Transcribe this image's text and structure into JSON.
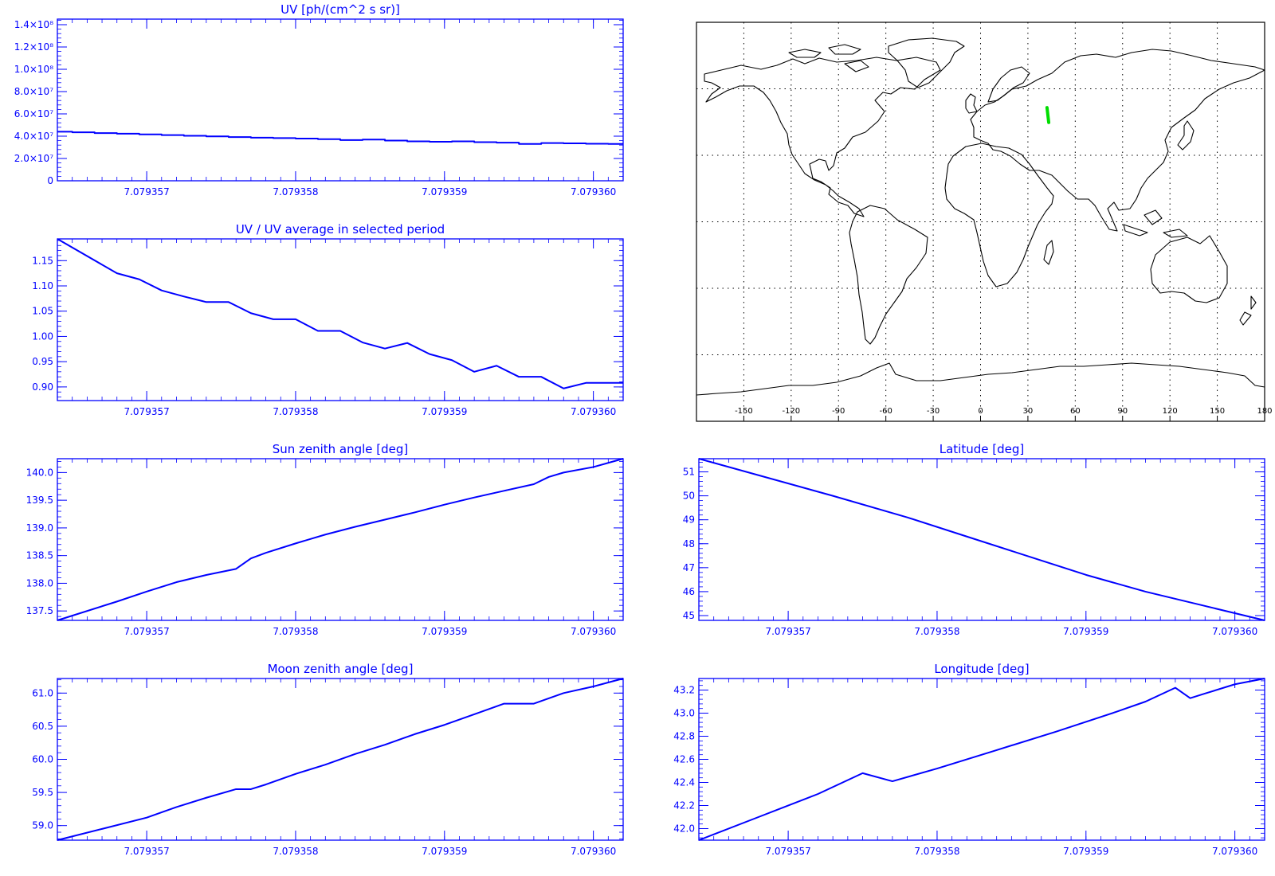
{
  "chart_data": [
    {
      "id": "uv",
      "type": "line",
      "title": "UV [ph/(cm^2 s sr)]",
      "xlim": [
        7.0793564,
        7.0793602
      ],
      "ylim": [
        0,
        145000000
      ],
      "x_ticks": [
        "7.079357",
        "7.079358",
        "7.079359",
        "7.079360"
      ],
      "x_tick_values": [
        7.079357,
        7.079358,
        7.079359,
        7.07936
      ],
      "y_ticks": [
        "0",
        "2.0×10⁷",
        "4.0×10⁷",
        "6.0×10⁷",
        "8.0×10⁷",
        "1.0×10⁸",
        "1.2×10⁸",
        "1.4×10⁸"
      ],
      "y_tick_values": [
        0,
        20000000,
        40000000,
        60000000,
        80000000,
        100000000,
        120000000,
        140000000
      ],
      "series": [
        {
          "color": "#0000ff",
          "step": true,
          "x": [
            7.0793564,
            7.0793565,
            7.07935665,
            7.0793568,
            7.07935695,
            7.0793571,
            7.07935725,
            7.0793574,
            7.07935755,
            7.0793577,
            7.07935785,
            7.079358,
            7.07935815,
            7.0793583,
            7.07935845,
            7.0793586,
            7.07935875,
            7.0793589,
            7.07935905,
            7.0793592,
            7.07935935,
            7.0793595,
            7.07935965,
            7.0793598,
            7.07935995,
            7.0793601,
            7.0793602
          ],
          "y": [
            44000000,
            43500000,
            42800000,
            42200000,
            41600000,
            41000000,
            40400000,
            39800000,
            39200000,
            38700000,
            38300000,
            37900000,
            37300000,
            36500000,
            37000000,
            36100000,
            35400000,
            35000000,
            35400000,
            34600000,
            34200000,
            33000000,
            33800000,
            33600000,
            33200000,
            33000000,
            33000000
          ]
        }
      ]
    },
    {
      "id": "uvnorm",
      "type": "line",
      "title": "UV / UV average in selected period",
      "xlim": [
        7.0793564,
        7.0793602
      ],
      "ylim": [
        0.873,
        1.193
      ],
      "x_ticks": [
        "7.079357",
        "7.079358",
        "7.079359",
        "7.079360"
      ],
      "x_tick_values": [
        7.079357,
        7.079358,
        7.079359,
        7.07936
      ],
      "y_ticks": [
        "0.90",
        "0.95",
        "1.00",
        "1.05",
        "1.10",
        "1.15"
      ],
      "y_tick_values": [
        0.9,
        0.95,
        1.0,
        1.05,
        1.1,
        1.15
      ],
      "series": [
        {
          "color": "#0000ff",
          "x": [
            7.0793564,
            7.0793568,
            7.07935695,
            7.0793571,
            7.07935725,
            7.0793574,
            7.07935755,
            7.0793577,
            7.07935785,
            7.079358,
            7.07935815,
            7.0793583,
            7.07935845,
            7.0793586,
            7.07935875,
            7.0793589,
            7.07935905,
            7.0793592,
            7.07935935,
            7.0793595,
            7.07935965,
            7.0793598,
            7.07935995,
            7.0793601,
            7.0793602
          ],
          "y": [
            1.193,
            1.125,
            1.113,
            1.091,
            1.079,
            1.068,
            1.068,
            1.046,
            1.034,
            1.034,
            1.011,
            1.011,
            0.988,
            0.976,
            0.987,
            0.965,
            0.953,
            0.93,
            0.942,
            0.92,
            0.92,
            0.897,
            0.908,
            0.908,
            0.908
          ]
        }
      ]
    },
    {
      "id": "sza",
      "type": "line",
      "title": "Sun zenith angle [deg]",
      "xlim": [
        7.0793564,
        7.0793602
      ],
      "ylim": [
        137.33,
        140.25
      ],
      "x_ticks": [
        "7.079357",
        "7.079358",
        "7.079359",
        "7.079360"
      ],
      "x_tick_values": [
        7.079357,
        7.079358,
        7.079359,
        7.07936
      ],
      "y_ticks": [
        "137.5",
        "138.0",
        "138.5",
        "139.0",
        "139.5",
        "140.0"
      ],
      "y_tick_values": [
        137.5,
        138.0,
        138.5,
        139.0,
        139.5,
        140.0
      ],
      "series": [
        {
          "color": "#0000ff",
          "x": [
            7.0793564,
            7.0793568,
            7.079357,
            7.0793572,
            7.0793574,
            7.0793576,
            7.0793577,
            7.0793578,
            7.079358,
            7.0793582,
            7.0793584,
            7.0793586,
            7.0793588,
            7.079359,
            7.0793592,
            7.0793594,
            7.0793596,
            7.0793597,
            7.0793598,
            7.07936,
            7.0793602
          ],
          "y": [
            137.33,
            137.67,
            137.85,
            138.02,
            138.15,
            138.26,
            138.45,
            138.55,
            138.72,
            138.88,
            139.02,
            139.15,
            139.28,
            139.42,
            139.55,
            139.67,
            139.79,
            139.92,
            140.0,
            140.1,
            140.25
          ]
        }
      ]
    },
    {
      "id": "lat",
      "type": "line",
      "title": "Latitude [deg]",
      "xlim": [
        7.0793564,
        7.0793602
      ],
      "ylim": [
        44.8,
        51.55
      ],
      "x_ticks": [
        "7.079357",
        "7.079358",
        "7.079359",
        "7.079360"
      ],
      "x_tick_values": [
        7.079357,
        7.079358,
        7.079359,
        7.07936
      ],
      "y_ticks": [
        "45",
        "46",
        "47",
        "48",
        "49",
        "50",
        "51"
      ],
      "y_tick_values": [
        45,
        46,
        47,
        48,
        49,
        50,
        51
      ],
      "series": [
        {
          "color": "#0000ff",
          "x": [
            7.0793564,
            7.0793573,
            7.0793578,
            7.0793582,
            7.0793586,
            7.079359,
            7.0793594,
            7.0793598,
            7.0793602
          ],
          "y": [
            51.55,
            50.0,
            49.1,
            48.3,
            47.5,
            46.7,
            46.0,
            45.4,
            44.8
          ]
        }
      ]
    },
    {
      "id": "mza",
      "type": "line",
      "title": "Moon zenith angle [deg]",
      "xlim": [
        7.0793564,
        7.0793602
      ],
      "ylim": [
        58.78,
        61.22
      ],
      "x_ticks": [
        "7.079357",
        "7.079358",
        "7.079359",
        "7.079360"
      ],
      "x_tick_values": [
        7.079357,
        7.079358,
        7.079359,
        7.07936
      ],
      "y_ticks": [
        "59.0",
        "59.5",
        "60.0",
        "60.5",
        "61.0"
      ],
      "y_tick_values": [
        59.0,
        59.5,
        60.0,
        60.5,
        61.0
      ],
      "series": [
        {
          "color": "#0000ff",
          "x": [
            7.0793564,
            7.0793567,
            7.079357,
            7.0793572,
            7.0793574,
            7.0793576,
            7.0793577,
            7.0793578,
            7.079358,
            7.0793582,
            7.0793584,
            7.0793586,
            7.0793588,
            7.079359,
            7.0793592,
            7.0793594,
            7.0793596,
            7.0793597,
            7.0793598,
            7.07936,
            7.0793602
          ],
          "y": [
            58.78,
            58.95,
            59.12,
            59.28,
            59.42,
            59.55,
            59.55,
            59.62,
            59.78,
            59.92,
            60.08,
            60.22,
            60.38,
            60.52,
            60.68,
            60.84,
            60.84,
            60.92,
            61.0,
            61.1,
            61.22
          ]
        }
      ]
    },
    {
      "id": "lon",
      "type": "line",
      "title": "Longitude [deg]",
      "xlim": [
        7.0793564,
        7.0793602
      ],
      "ylim": [
        41.9,
        43.3
      ],
      "x_ticks": [
        "7.079357",
        "7.079358",
        "7.079359",
        "7.079360"
      ],
      "x_tick_values": [
        7.079357,
        7.079358,
        7.079359,
        7.07936
      ],
      "y_ticks": [
        "42.0",
        "42.2",
        "42.4",
        "42.6",
        "42.8",
        "43.0",
        "43.2"
      ],
      "y_tick_values": [
        42.0,
        42.2,
        42.4,
        42.6,
        42.8,
        43.0,
        43.2
      ],
      "series": [
        {
          "color": "#0000ff",
          "x": [
            7.0793564,
            7.0793568,
            7.0793572,
            7.0793575,
            7.0793577,
            7.079358,
            7.0793584,
            7.0793588,
            7.0793592,
            7.0793594,
            7.0793596,
            7.0793597,
            7.0793598,
            7.07936,
            7.0793602
          ],
          "y": [
            41.9,
            42.1,
            42.3,
            42.48,
            42.41,
            42.52,
            42.68,
            42.84,
            43.01,
            43.1,
            43.22,
            43.13,
            43.17,
            43.25,
            43.3
          ]
        }
      ]
    }
  ],
  "map": {
    "x_ticks": [
      "-150",
      "-120",
      "-90",
      "-60",
      "-30",
      "0",
      "30",
      "60",
      "90",
      "120",
      "150",
      "180"
    ],
    "x_tick_values": [
      -150,
      -120,
      -90,
      -60,
      -30,
      0,
      30,
      60,
      90,
      120,
      150,
      180
    ],
    "lon_range": [
      -180,
      180
    ],
    "lat_range": [
      -90,
      90
    ],
    "grid_lats": [
      -60,
      -30,
      0,
      30,
      60
    ],
    "track": {
      "color": "#00dd00",
      "lon": [
        42.1,
        43.2
      ],
      "lat": [
        51.5,
        44.8
      ]
    }
  }
}
